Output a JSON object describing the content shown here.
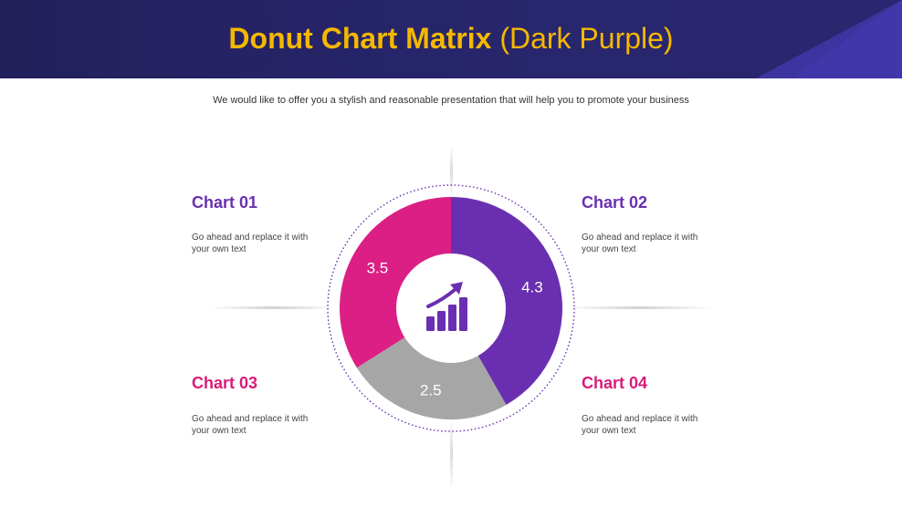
{
  "header": {
    "title_bold": "Donut Chart Matrix",
    "title_light": "(Dark Purple)"
  },
  "subtitle": "We would like to offer you a stylish and reasonable presentation that will help you to promote your business",
  "colors": {
    "header_bg": "#27256a",
    "title": "#f5b800",
    "purple": "#6a2fb0",
    "magenta": "#dc1f84",
    "gray": "#a6a6a6",
    "heading_purple": "#6a2fb0",
    "heading_magenta": "#d81b7a"
  },
  "center_icon": "growth-chart-icon",
  "labels": [
    {
      "title": "Chart 01",
      "desc": "Go ahead and replace it with  your own text"
    },
    {
      "title": "Chart 02",
      "desc": "Go ahead and replace it with  your own text"
    },
    {
      "title": "Chart 03",
      "desc": "Go ahead and replace it with  your own text"
    },
    {
      "title": "Chart 04",
      "desc": "Go ahead and replace it with  your own text"
    }
  ],
  "chart_data": {
    "type": "pie",
    "variant": "donut",
    "values": [
      4.3,
      2.5,
      3.5
    ],
    "value_labels": [
      "4.3",
      "2.5",
      "3.5"
    ],
    "colors": [
      "#6a2fb0",
      "#a6a6a6",
      "#dc1f84"
    ],
    "start_angle_deg": 0,
    "direction": "clockwise"
  }
}
